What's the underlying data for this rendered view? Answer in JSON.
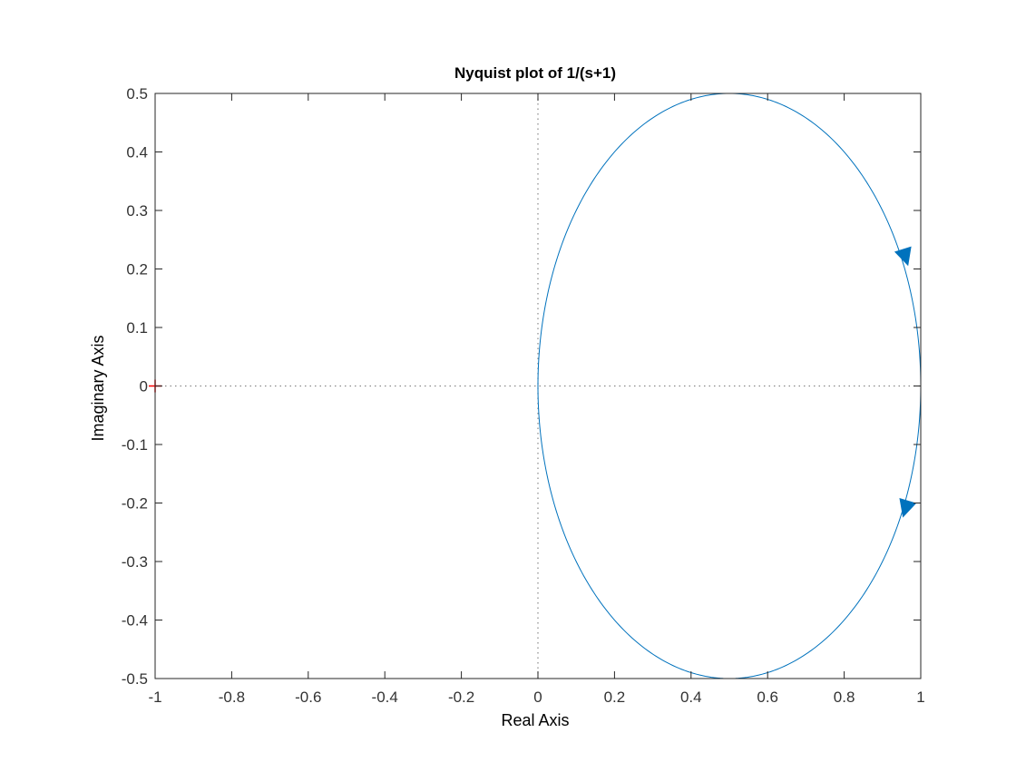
{
  "chart_data": {
    "type": "line",
    "title": "Nyquist plot of 1/(s+1)",
    "xlabel": "Real Axis",
    "ylabel": "Imaginary Axis",
    "xlim": [
      -1,
      1
    ],
    "ylim": [
      -0.5,
      0.5
    ],
    "xticks": [
      "-1",
      "-0.8",
      "-0.6",
      "-0.4",
      "-0.2",
      "0",
      "0.2",
      "0.4",
      "0.6",
      "0.8",
      "1"
    ],
    "yticks": [
      "0.5",
      "0.4",
      "0.3",
      "0.2",
      "0.1",
      "0",
      "-0.1",
      "-0.2",
      "-0.3",
      "-0.4",
      "-0.5"
    ],
    "grid": false,
    "series": [
      {
        "curve": "circle",
        "center": [
          0.5,
          0
        ],
        "radius": 0.5,
        "color": "#0072BD",
        "direction_arrows": [
          {
            "x": 0.96,
            "y": 0.22,
            "heading": "down"
          },
          {
            "x": 0.96,
            "y": -0.21,
            "heading": "down"
          }
        ]
      }
    ],
    "critical_point": {
      "x": -1,
      "y": 0,
      "marker": "+",
      "color": "#FF0000"
    },
    "zero_lines": {
      "style": "dotted",
      "color": "#888888"
    }
  }
}
